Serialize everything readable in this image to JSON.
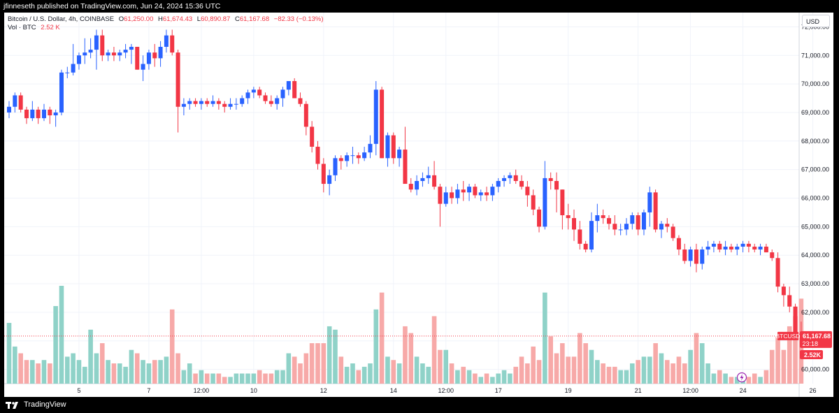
{
  "header": {
    "published": "jfinneseth published on TradingView.com, Jun 24, 2024 15:36 UTC"
  },
  "legend": {
    "symbol": "Bitcoin / U.S. Dollar, 4h, COINBASE",
    "open_label": "O",
    "open": "61,250.00",
    "high_label": "H",
    "high": "61,674.43",
    "low_label": "L",
    "low": "60,890.87",
    "close_label": "C",
    "close": "61,167.68",
    "change": "−82.33 (−0.13%)",
    "volume_label": "Vol · BTC",
    "volume": "2.52 K"
  },
  "currency": "USD",
  "footer": {
    "brand": "TradingView"
  },
  "colors": {
    "up": "#2962ff",
    "down": "#f23645",
    "vol_up": "#8fd2c8",
    "vol_down": "#f7a9a8",
    "grid": "#f0f3fa"
  },
  "chart_data": {
    "type": "candlestick",
    "symbol": "BTCUSD",
    "timeframe": "4h",
    "exchange": "COINBASE",
    "ylim": [
      59500,
      72500
    ],
    "y_ticks": [
      60000,
      61000,
      62000,
      63000,
      64000,
      65000,
      66000,
      67000,
      68000,
      69000,
      70000,
      71000,
      72000
    ],
    "y_tick_labels": [
      "60,000.00",
      "61,000.00",
      "62,000.00",
      "63,000.00",
      "64,000.00",
      "65,000.00",
      "66,000.00",
      "67,000.00",
      "68,000.00",
      "69,000.00",
      "70,000.00",
      "71,000.00",
      "72,000.00"
    ],
    "x_tick_labels": [
      {
        "label": "5",
        "bar": 12
      },
      {
        "label": "7",
        "bar": 24
      },
      {
        "label": "12:00",
        "bar": 33
      },
      {
        "label": "10",
        "bar": 42
      },
      {
        "label": "12",
        "bar": 54
      },
      {
        "label": "14",
        "bar": 66
      },
      {
        "label": "12:00",
        "bar": 75
      },
      {
        "label": "17",
        "bar": 84
      },
      {
        "label": "19",
        "bar": 96
      },
      {
        "label": "21",
        "bar": 108
      },
      {
        "label": "12:00",
        "bar": 117
      },
      {
        "label": "24",
        "bar": 126
      },
      {
        "label": "26",
        "bar": 138
      }
    ],
    "last_price": 61167.68,
    "last_price_label": "61,167.68",
    "countdown": "23:18",
    "volume_label": "2.52K",
    "volume_max": 2.9,
    "candles": [
      [
        69000,
        69400,
        68800,
        69200,
        1.8
      ],
      [
        69200,
        69700,
        69000,
        69600,
        1.1
      ],
      [
        69600,
        69700,
        69000,
        69100,
        0.9
      ],
      [
        69100,
        69200,
        68600,
        68800,
        0.7
      ],
      [
        68800,
        69400,
        68700,
        69100,
        0.7
      ],
      [
        69100,
        69200,
        68600,
        68800,
        0.6
      ],
      [
        68800,
        69300,
        68700,
        69100,
        0.7
      ],
      [
        69100,
        69200,
        68600,
        68900,
        0.6
      ],
      [
        68900,
        69100,
        68500,
        69000,
        2.3
      ],
      [
        69000,
        70500,
        68900,
        70400,
        2.9
      ],
      [
        70400,
        70600,
        70200,
        70400,
        0.8
      ],
      [
        70400,
        71400,
        70300,
        70700,
        0.9
      ],
      [
        70700,
        71100,
        70500,
        71000,
        0.7
      ],
      [
        71000,
        71600,
        70700,
        71100,
        0.5
      ],
      [
        71100,
        71600,
        70900,
        71200,
        1.6
      ],
      [
        71200,
        71900,
        70500,
        71700,
        0.9
      ],
      [
        71700,
        71900,
        70800,
        71000,
        1.2
      ],
      [
        71000,
        71200,
        70800,
        71100,
        0.7
      ],
      [
        71100,
        71300,
        70800,
        71000,
        0.6
      ],
      [
        71000,
        71200,
        70800,
        71100,
        0.6
      ],
      [
        71100,
        71400,
        70900,
        71200,
        0.5
      ],
      [
        71200,
        71400,
        70700,
        71300,
        1.0
      ],
      [
        71300,
        71300,
        70500,
        70500,
        0.9
      ],
      [
        70500,
        71000,
        70100,
        70700,
        0.7
      ],
      [
        70700,
        71200,
        70500,
        71100,
        0.6
      ],
      [
        71100,
        71400,
        70600,
        70900,
        0.7
      ],
      [
        70900,
        71500,
        70600,
        71300,
        0.7
      ],
      [
        71300,
        71900,
        71100,
        71700,
        0.8
      ],
      [
        71700,
        71900,
        71000,
        71100,
        2.2
      ],
      [
        71100,
        71200,
        68300,
        69200,
        0.9
      ],
      [
        69200,
        69500,
        68900,
        69300,
        0.4
      ],
      [
        69300,
        69500,
        69100,
        69400,
        0.6
      ],
      [
        69400,
        69500,
        69200,
        69300,
        0.3
      ],
      [
        69300,
        69500,
        69100,
        69400,
        0.4
      ],
      [
        69400,
        69500,
        69200,
        69300,
        0.3
      ],
      [
        69300,
        69600,
        69200,
        69400,
        0.3
      ],
      [
        69400,
        69500,
        69100,
        69300,
        0.3
      ],
      [
        69300,
        69400,
        69000,
        69200,
        0.2
      ],
      [
        69200,
        69500,
        69100,
        69300,
        0.2
      ],
      [
        69300,
        69500,
        69100,
        69300,
        0.3
      ],
      [
        69300,
        69600,
        69200,
        69500,
        0.3
      ],
      [
        69500,
        69800,
        69300,
        69700,
        0.3
      ],
      [
        69700,
        69900,
        69500,
        69800,
        0.3
      ],
      [
        69800,
        69900,
        69500,
        69600,
        0.4
      ],
      [
        69600,
        69700,
        69300,
        69400,
        0.3
      ],
      [
        69400,
        69600,
        69200,
        69300,
        0.3
      ],
      [
        69300,
        69600,
        69100,
        69500,
        0.4
      ],
      [
        69500,
        69900,
        69200,
        69800,
        0.4
      ],
      [
        69800,
        70100,
        69600,
        70100,
        0.9
      ],
      [
        70100,
        70200,
        69500,
        69500,
        0.8
      ],
      [
        69500,
        69700,
        69200,
        69300,
        0.6
      ],
      [
        69300,
        69400,
        68200,
        68500,
        0.9
      ],
      [
        68500,
        68700,
        67600,
        67800,
        1.2
      ],
      [
        67800,
        68000,
        67000,
        67200,
        1.2
      ],
      [
        67200,
        67400,
        66200,
        66500,
        1.2
      ],
      [
        66500,
        67000,
        66100,
        66800,
        1.7
      ],
      [
        66800,
        67500,
        66600,
        67400,
        1.6
      ],
      [
        67400,
        67500,
        67000,
        67300,
        0.8
      ],
      [
        67300,
        67600,
        67100,
        67500,
        0.5
      ],
      [
        67500,
        67800,
        67200,
        67500,
        0.6
      ],
      [
        67500,
        67600,
        67200,
        67400,
        0.4
      ],
      [
        67400,
        67800,
        67300,
        67600,
        0.5
      ],
      [
        67600,
        68200,
        67400,
        67900,
        0.6
      ],
      [
        67900,
        70100,
        67500,
        69800,
        2.2
      ],
      [
        69800,
        69900,
        67400,
        67400,
        2.7
      ],
      [
        67400,
        68300,
        67100,
        68200,
        0.8
      ],
      [
        68200,
        68300,
        67200,
        67400,
        0.7
      ],
      [
        67400,
        67800,
        67100,
        67700,
        0.6
      ],
      [
        67700,
        68500,
        66600,
        66500,
        1.7
      ],
      [
        66500,
        66700,
        66200,
        66300,
        1.5
      ],
      [
        66300,
        66800,
        66100,
        66600,
        0.8
      ],
      [
        66600,
        66900,
        66400,
        66700,
        0.6
      ],
      [
        66700,
        67100,
        66500,
        66800,
        0.5
      ],
      [
        66800,
        67300,
        66300,
        66400,
        2.0
      ],
      [
        66400,
        66500,
        65000,
        65800,
        1.0
      ],
      [
        65800,
        66400,
        65700,
        66200,
        1.0
      ],
      [
        66200,
        66400,
        65800,
        66000,
        0.6
      ],
      [
        66000,
        66500,
        65800,
        66300,
        0.4
      ],
      [
        66300,
        66600,
        65900,
        66200,
        0.5
      ],
      [
        66200,
        66500,
        65900,
        66400,
        0.4
      ],
      [
        66400,
        66500,
        66000,
        66100,
        0.3
      ],
      [
        66100,
        66300,
        65900,
        66200,
        0.2
      ],
      [
        66200,
        66400,
        65900,
        66100,
        0.3
      ],
      [
        66100,
        66500,
        65900,
        66400,
        0.2
      ],
      [
        66400,
        66700,
        66200,
        66600,
        0.3
      ],
      [
        66600,
        66800,
        66400,
        66700,
        0.4
      ],
      [
        66700,
        66900,
        66500,
        66800,
        0.3
      ],
      [
        66800,
        67000,
        66500,
        66600,
        0.5
      ],
      [
        66600,
        66800,
        66300,
        66400,
        0.8
      ],
      [
        66400,
        66600,
        65700,
        66100,
        0.6
      ],
      [
        66100,
        66300,
        65400,
        65600,
        1.1
      ],
      [
        65600,
        65700,
        64800,
        65000,
        0.7
      ],
      [
        65000,
        67300,
        64900,
        66700,
        2.7
      ],
      [
        66700,
        66900,
        66300,
        66600,
        1.4
      ],
      [
        66600,
        66900,
        65500,
        66300,
        0.9
      ],
      [
        66300,
        66300,
        64900,
        65400,
        1.2
      ],
      [
        65400,
        65800,
        64900,
        65300,
        0.8
      ],
      [
        65300,
        65600,
        64500,
        64900,
        0.8
      ],
      [
        64900,
        65200,
        64200,
        64400,
        1.5
      ],
      [
        64400,
        64500,
        64100,
        64200,
        1.2
      ],
      [
        64200,
        65500,
        64100,
        65200,
        1.0
      ],
      [
        65200,
        65800,
        64800,
        65400,
        0.7
      ],
      [
        65400,
        65600,
        65100,
        65300,
        0.6
      ],
      [
        65300,
        65400,
        64900,
        65100,
        0.5
      ],
      [
        65100,
        65400,
        64700,
        64900,
        0.5
      ],
      [
        64900,
        65100,
        64700,
        64900,
        0.4
      ],
      [
        64900,
        65300,
        64700,
        65100,
        0.4
      ],
      [
        65100,
        65500,
        64900,
        65400,
        0.6
      ],
      [
        65400,
        65500,
        64700,
        64900,
        0.7
      ],
      [
        64900,
        65600,
        64700,
        65500,
        0.8
      ],
      [
        65500,
        66400,
        65000,
        66200,
        0.8
      ],
      [
        66200,
        66300,
        64800,
        64900,
        1.2
      ],
      [
        64900,
        65200,
        64600,
        65100,
        0.9
      ],
      [
        65100,
        65300,
        64800,
        65000,
        0.7
      ],
      [
        65000,
        65100,
        64500,
        64600,
        0.6
      ],
      [
        64600,
        64700,
        64000,
        64200,
        0.8
      ],
      [
        64200,
        64400,
        63700,
        63800,
        0.6
      ],
      [
        63800,
        64300,
        63600,
        64200,
        1.0
      ],
      [
        64200,
        64400,
        63400,
        63700,
        1.5
      ],
      [
        63700,
        64300,
        63500,
        64200,
        1.2
      ],
      [
        64200,
        64500,
        64000,
        64300,
        0.6
      ],
      [
        64300,
        64500,
        64100,
        64400,
        0.3
      ],
      [
        64400,
        64500,
        64100,
        64200,
        0.4
      ],
      [
        64200,
        64500,
        64000,
        64300,
        0.3
      ],
      [
        64300,
        64400,
        64100,
        64200,
        0.2
      ],
      [
        64200,
        64400,
        64000,
        64300,
        0.2
      ],
      [
        64300,
        64500,
        64100,
        64400,
        0.2
      ],
      [
        64400,
        64500,
        64100,
        64300,
        0.2
      ],
      [
        64300,
        64400,
        64100,
        64200,
        0.3
      ],
      [
        64200,
        64400,
        64000,
        64300,
        0.2
      ],
      [
        64300,
        64400,
        64100,
        64100,
        0.4
      ],
      [
        64100,
        64200,
        63800,
        63900,
        1.0
      ],
      [
        63900,
        64100,
        62700,
        62900,
        1.4
      ],
      [
        62900,
        63000,
        62200,
        62600,
        1.0
      ],
      [
        62600,
        62900,
        62000,
        62200,
        1.7
      ],
      [
        62200,
        62300,
        61200,
        61250,
        2.0
      ],
      [
        61250,
        61674.43,
        60890.87,
        61167.68,
        2.52
      ]
    ]
  }
}
